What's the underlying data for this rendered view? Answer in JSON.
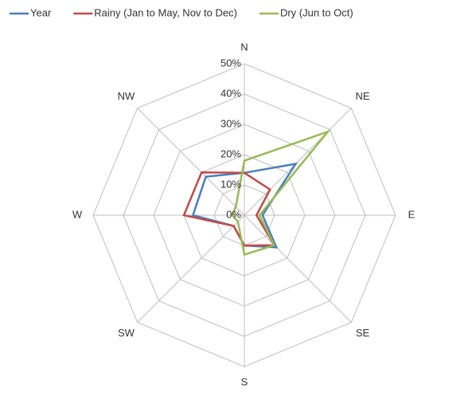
{
  "chart_data": {
    "type": "radar",
    "categories": [
      "N",
      "NE",
      "E",
      "SE",
      "S",
      "SW",
      "W",
      "NW"
    ],
    "series": [
      {
        "name": "Year",
        "color": "#4a7ebb",
        "values": [
          14,
          24,
          6,
          15,
          10,
          5,
          17,
          18
        ]
      },
      {
        "name": "Rainy (Jan to May, Nov to Dec)",
        "color": "#be4b48",
        "values": [
          14,
          12,
          4,
          14,
          10,
          5,
          20,
          20
        ]
      },
      {
        "name": "Dry (Jun to Oct)",
        "color": "#98b954",
        "values": [
          18,
          39,
          5,
          14,
          13,
          3,
          4,
          4
        ]
      }
    ],
    "rlim": [
      0,
      50
    ],
    "rticks": [
      {
        "value": 0,
        "label": "0%"
      },
      {
        "value": 10,
        "label": "10%"
      },
      {
        "value": 20,
        "label": "20%"
      },
      {
        "value": 30,
        "label": "30%"
      },
      {
        "value": 40,
        "label": "40%"
      },
      {
        "value": 50,
        "label": "50%"
      }
    ],
    "grid": true,
    "legend": "top"
  }
}
